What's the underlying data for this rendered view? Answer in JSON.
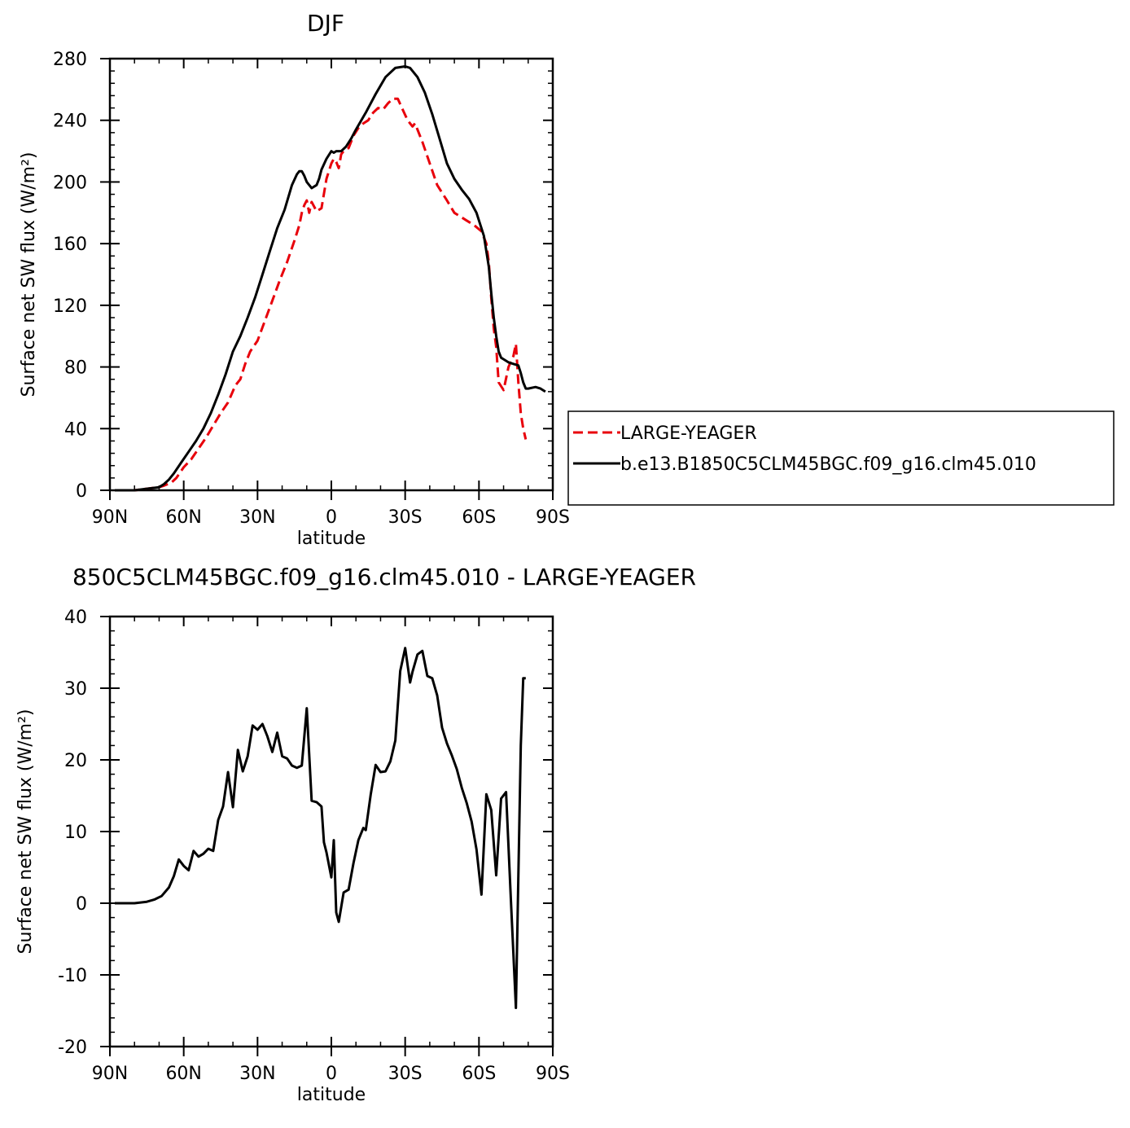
{
  "chart_data": [
    {
      "type": "line",
      "title": "DJF",
      "xlabel": "latitude",
      "ylabel": "Surface net SW flux (W/m²)",
      "xlim": [
        -90,
        90
      ],
      "ylim": [
        0,
        280
      ],
      "xticks": [
        {
          "value": -90,
          "label": "90N"
        },
        {
          "value": -60,
          "label": "60N"
        },
        {
          "value": -30,
          "label": "30N"
        },
        {
          "value": 0,
          "label": "0"
        },
        {
          "value": 30,
          "label": "30S"
        },
        {
          "value": 60,
          "label": "60S"
        },
        {
          "value": 90,
          "label": "90S"
        }
      ],
      "yticks": [
        0,
        40,
        80,
        120,
        160,
        200,
        240,
        280
      ],
      "legend": {
        "placement": "right"
      },
      "series": [
        {
          "name": "LARGE-YEAGER",
          "color": "#e8000b",
          "dash": "dashed",
          "x": [
            -88,
            -80,
            -75,
            -70,
            -68,
            -65,
            -63,
            -60,
            -57,
            -54,
            -51,
            -48,
            -45,
            -42,
            -39,
            -37,
            -35,
            -33,
            -30,
            -27,
            -24,
            -21,
            -18,
            -15,
            -13,
            -12,
            -11,
            -10,
            -9,
            -8,
            -6,
            -4,
            -2,
            0,
            1,
            2,
            3,
            4,
            5,
            7,
            9,
            11,
            13,
            15,
            17,
            19,
            21,
            23,
            25,
            27,
            29,
            31,
            33,
            34,
            35,
            37,
            40,
            43,
            47,
            50,
            53,
            55,
            58,
            61,
            63,
            64,
            65,
            66,
            67,
            68,
            70,
            72,
            74,
            75,
            76,
            77,
            78,
            79
          ],
          "y": [
            0,
            0,
            1,
            2,
            3,
            5,
            8,
            15,
            20,
            27,
            34,
            42,
            50,
            57,
            68,
            72,
            82,
            90,
            97,
            110,
            123,
            136,
            148,
            162,
            172,
            180,
            185,
            188,
            180,
            187,
            181,
            183,
            202,
            212,
            215,
            213,
            209,
            218,
            220,
            222,
            230,
            235,
            238,
            240,
            245,
            248,
            247,
            251,
            254,
            254,
            247,
            240,
            236,
            238,
            234,
            226,
            212,
            198,
            188,
            180,
            177,
            175,
            172,
            168,
            160,
            148,
            125,
            105,
            93,
            70,
            65,
            80,
            87,
            95,
            70,
            50,
            40,
            33
          ]
        },
        {
          "name": "b.e13.B1850C5CLM45BGC.f09_g16.clm45.010",
          "color": "#000000",
          "dash": "solid",
          "x": [
            -88,
            -80,
            -75,
            -70,
            -68,
            -66,
            -64,
            -61,
            -58,
            -55,
            -52,
            -49,
            -46,
            -43,
            -40,
            -37,
            -34,
            -31,
            -28,
            -25,
            -22,
            -19,
            -16,
            -14,
            -13,
            -12,
            -11,
            -10,
            -8,
            -6,
            -5,
            -4,
            -2,
            0,
            1,
            2,
            4,
            6,
            8,
            10,
            14,
            18,
            22,
            26,
            30,
            32,
            35,
            38,
            41,
            44,
            47,
            50,
            53,
            56,
            59,
            62,
            64,
            65,
            66,
            67,
            68,
            69,
            70,
            72,
            74,
            76,
            77,
            78,
            79,
            80,
            83,
            85,
            87
          ],
          "y": [
            0,
            0,
            1,
            2,
            4,
            7,
            11,
            18,
            25,
            32,
            40,
            50,
            62,
            75,
            90,
            100,
            112,
            125,
            140,
            155,
            170,
            182,
            198,
            205,
            207,
            207,
            204,
            200,
            196,
            198,
            202,
            208,
            215,
            220,
            219,
            220,
            220,
            223,
            228,
            234,
            245,
            257,
            268,
            274,
            275,
            274,
            268,
            258,
            244,
            228,
            212,
            202,
            195,
            189,
            180,
            165,
            145,
            128,
            112,
            100,
            90,
            86,
            85,
            83,
            82,
            81,
            76,
            70,
            66,
            66,
            67,
            66,
            64
          ]
        }
      ]
    },
    {
      "type": "line",
      "title": "850C5CLM45BGC.f09_g16.clm45.010 - LARGE-YEAGER",
      "xlabel": "latitude",
      "ylabel": "Surface net SW flux (W/m²)",
      "xlim": [
        -90,
        90
      ],
      "ylim": [
        -20,
        40
      ],
      "xticks": [
        {
          "value": -90,
          "label": "90N"
        },
        {
          "value": -60,
          "label": "60N"
        },
        {
          "value": -30,
          "label": "30N"
        },
        {
          "value": 0,
          "label": "0"
        },
        {
          "value": 30,
          "label": "30S"
        },
        {
          "value": 60,
          "label": "60S"
        },
        {
          "value": 90,
          "label": "90S"
        }
      ],
      "yticks": [
        -20,
        -10,
        0,
        10,
        20,
        30,
        40
      ],
      "series": [
        {
          "color": "#000000",
          "dash": "solid",
          "x": [
            -88,
            -80,
            -75,
            -72,
            -69,
            -66,
            -64,
            -62,
            -60,
            -58,
            -56,
            -54,
            -52,
            -50,
            -48,
            -46,
            -44,
            -42,
            -40,
            -38,
            -36,
            -34,
            -32,
            -30,
            -28,
            -26,
            -24,
            -22,
            -20,
            -18,
            -16,
            -14,
            -12,
            -10,
            -8,
            -6,
            -4,
            -3,
            -2,
            0,
            1,
            2,
            3,
            5,
            7,
            9,
            11,
            13,
            14,
            16,
            18,
            20,
            22,
            24,
            26,
            28,
            30,
            32,
            33,
            35,
            37,
            39,
            41,
            43,
            45,
            47,
            49,
            51,
            53,
            55,
            57,
            59,
            61,
            63,
            65,
            67,
            69,
            71,
            73,
            75,
            77,
            78,
            79
          ],
          "y": [
            0,
            0,
            0.2,
            0.5,
            1,
            2.2,
            3.8,
            6.1,
            5.2,
            4.6,
            7.3,
            6.5,
            6.9,
            7.6,
            7.3,
            11.6,
            13.5,
            18.3,
            13.4,
            21.4,
            18.4,
            20.5,
            24.8,
            24.2,
            25.0,
            23.3,
            21.1,
            23.8,
            20.5,
            20.2,
            19.2,
            18.9,
            19.2,
            27.2,
            14.3,
            14.1,
            13.5,
            8.5,
            7.1,
            3.6,
            8.8,
            -1.3,
            -2.6,
            1.5,
            1.9,
            5.6,
            8.8,
            10.5,
            10.2,
            15.2,
            19.3,
            18.3,
            18.4,
            19.8,
            22.7,
            32.4,
            35.6,
            30.8,
            32.3,
            34.7,
            35.2,
            31.7,
            31.4,
            29.0,
            24.5,
            22.3,
            20.6,
            18.7,
            16.1,
            14.0,
            11.4,
            7.5,
            1.2,
            15.2,
            13.0,
            3.9,
            14.6,
            15.5,
            0.3,
            -14.6,
            22.0,
            31.4,
            31.4
          ]
        }
      ]
    }
  ]
}
